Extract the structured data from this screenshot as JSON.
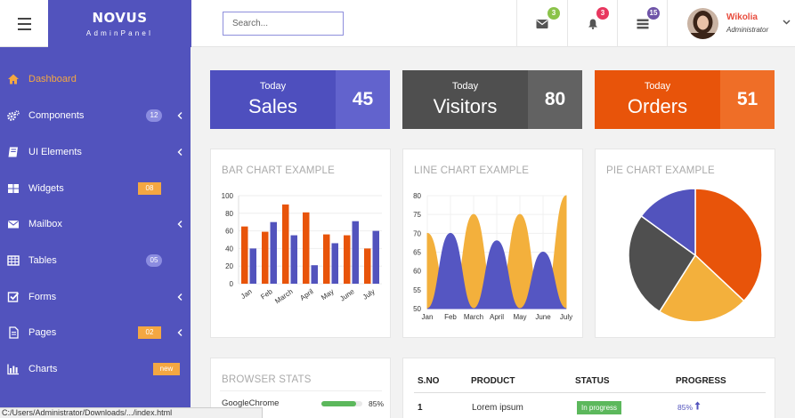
{
  "brand": {
    "name": "NOVUS",
    "sub": "AdminPanel"
  },
  "search": {
    "placeholder": "Search..."
  },
  "notifications": {
    "mail": {
      "icon": "envelope-icon",
      "count": "3",
      "color": "#8bc34a"
    },
    "bell": {
      "icon": "bell-icon",
      "count": "3",
      "color": "#e8375f"
    },
    "tasks": {
      "icon": "list-icon",
      "count": "15",
      "color": "#6f54a8"
    }
  },
  "user": {
    "name": "Wikolia",
    "role": "Administrator"
  },
  "sidebar": {
    "items": [
      {
        "label": "Dashboard",
        "icon": "home-icon",
        "active": true
      },
      {
        "label": "Components",
        "icon": "cogs-icon",
        "badge": "12",
        "badge_type": "round",
        "chevron": true
      },
      {
        "label": "UI Elements",
        "icon": "book-icon",
        "chevron": true
      },
      {
        "label": "Widgets",
        "icon": "grid-icon",
        "badge": "08",
        "badge_type": "square"
      },
      {
        "label": "Mailbox",
        "icon": "envelope-icon",
        "chevron": true
      },
      {
        "label": "Tables",
        "icon": "table-icon",
        "badge": "05",
        "badge_type": "round"
      },
      {
        "label": "Forms",
        "icon": "check-square-icon",
        "chevron": true
      },
      {
        "label": "Pages",
        "icon": "file-icon",
        "badge": "02",
        "badge_type": "square",
        "chevron": true
      },
      {
        "label": "Charts",
        "icon": "bar-chart-icon",
        "badge": "new",
        "badge_type": "new"
      }
    ]
  },
  "stats": [
    {
      "today": "Today",
      "title": "Sales",
      "value": "45",
      "color_left": "#4e4fbe",
      "color_right": "#6263cd"
    },
    {
      "today": "Today",
      "title": "Visitors",
      "value": "80",
      "color_left": "#4f4f4f",
      "color_right": "#626262"
    },
    {
      "today": "Today",
      "title": "Orders",
      "value": "51",
      "color_left": "#e8540a",
      "color_right": "#ef6e27"
    }
  ],
  "panels": {
    "bar_title": "BAR CHART EXAMPLE",
    "line_title": "LINE CHART EXAMPLE",
    "pie_title": "PIE CHART EXAMPLE",
    "browser_title": "BROWSER STATS"
  },
  "browser_stats": [
    {
      "name": "GoogleChrome",
      "percent": "85%",
      "fraction": 0.85
    }
  ],
  "table": {
    "headers": [
      "S.NO",
      "PRODUCT",
      "STATUS",
      "PROGRESS"
    ],
    "rows": [
      {
        "sno": "1",
        "product": "Lorem ipsum",
        "status": "In progress",
        "progress": "85%"
      }
    ]
  },
  "status_bar": "C:/Users/Administrator/Downloads/.../index.html",
  "colors": {
    "accent": "#5253bd",
    "orange": "#e8540a",
    "yellow": "#f3b03c",
    "gray": "#4f4f4f"
  },
  "chart_data": [
    {
      "type": "bar",
      "title": "BAR CHART EXAMPLE",
      "categories": [
        "Jan",
        "Feb",
        "March",
        "April",
        "May",
        "June",
        "July"
      ],
      "series": [
        {
          "values": [
            65,
            59,
            90,
            81,
            56,
            55,
            40
          ],
          "color": "#e8540a"
        },
        {
          "values": [
            40,
            70,
            55,
            21,
            46,
            71,
            60
          ],
          "color": "#5253bd"
        }
      ],
      "ylim": [
        0,
        100
      ],
      "yticks": [
        0,
        20,
        40,
        60,
        80,
        100
      ]
    },
    {
      "type": "line",
      "title": "LINE CHART EXAMPLE",
      "categories": [
        "Jan",
        "Feb",
        "March",
        "April",
        "May",
        "June",
        "July"
      ],
      "series": [
        {
          "values": [
            70,
            50,
            75,
            50,
            75,
            50,
            80
          ],
          "color": "#f3b03c"
        },
        {
          "values": [
            50,
            70,
            50,
            68,
            50,
            65,
            50
          ],
          "color": "#5556c2"
        }
      ],
      "ylim": [
        50,
        80
      ],
      "yticks": [
        50,
        55,
        60,
        65,
        70,
        75,
        80
      ]
    },
    {
      "type": "pie",
      "title": "PIE CHART EXAMPLE",
      "slices": [
        {
          "value": 37,
          "color": "#e8540a"
        },
        {
          "value": 22,
          "color": "#f3b03c"
        },
        {
          "value": 26,
          "color": "#4f4f4f"
        },
        {
          "value": 15,
          "color": "#5253bd"
        }
      ]
    }
  ]
}
